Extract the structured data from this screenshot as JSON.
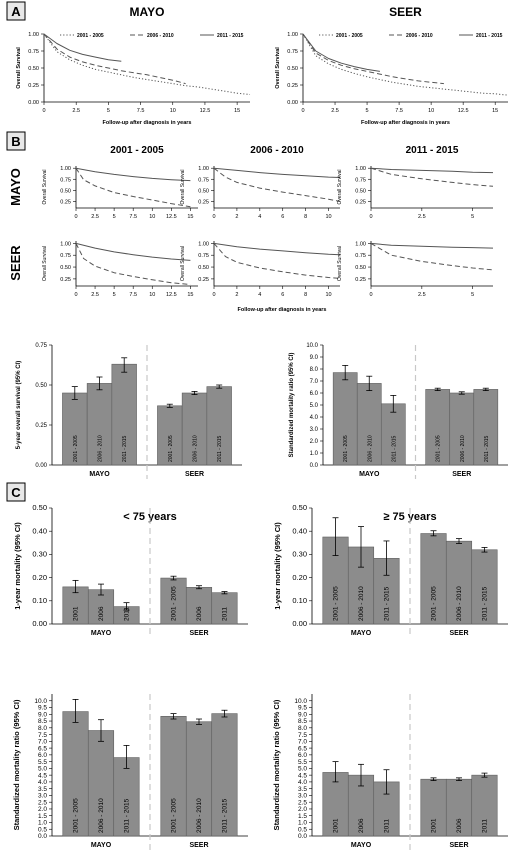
{
  "figure": {
    "panel_letters": [
      "A",
      "B",
      "C"
    ],
    "colors": {
      "bar_fill": "#8c8c8c",
      "bar_stroke": "#5e5e5e",
      "axis": "#000000",
      "divider": "#c8c8c8",
      "curve": "#555555",
      "panel_box_fill": "#e8e8e8"
    }
  },
  "panelA": {
    "charts": [
      {
        "title": "MAYO",
        "ylabel": "Overall Survival",
        "xlabel": "Follow-up after diagnosis in years",
        "xlim": [
          0,
          16
        ],
        "ylim": [
          0,
          1
        ],
        "xticks": [
          "0",
          "2.5",
          "5",
          "7.5",
          "10",
          "12.5",
          "15"
        ],
        "yticks": [
          "0.00",
          "0.25",
          "0.50",
          "0.75",
          "1.00"
        ],
        "legend": [
          "2001 - 2005",
          "2006 - 2010",
          "2011 - 2015"
        ]
      },
      {
        "title": "SEER",
        "ylabel": "Overall Survival",
        "xlabel": "Follow-up after diagnosis in years",
        "xlim": [
          0,
          16
        ],
        "ylim": [
          0,
          1
        ],
        "xticks": [
          "0",
          "2.5",
          "5",
          "7.5",
          "10",
          "12.5",
          "15"
        ],
        "yticks": [
          "0.00",
          "0.25",
          "0.50",
          "0.75",
          "1.00"
        ],
        "legend": [
          "2001 - 2005",
          "2006 - 2010",
          "2011 - 2015"
        ]
      }
    ]
  },
  "panelB": {
    "col_titles": [
      "2001 - 2005",
      "2006 - 2010",
      "2011 - 2015"
    ],
    "row_titles": [
      "MAYO",
      "SEER"
    ],
    "ylabel": "Overall Survival",
    "xlabel": "Follow-up after diagnosis in years",
    "yticks": [
      "0.25",
      "0.50",
      "0.75",
      "1.00"
    ],
    "xticks": [
      [
        "0",
        "2.5",
        "5",
        "7.5",
        "10",
        "12.5",
        "15"
      ],
      [
        "0",
        "2",
        "4",
        "6",
        "8",
        "10"
      ],
      [
        "0",
        "2.5",
        "5"
      ]
    ]
  },
  "chart_data": [
    {
      "type": "line",
      "panel": "A",
      "title": "MAYO",
      "xlabel": "Follow-up after diagnosis in years",
      "ylabel": "Overall Survival",
      "xlim": [
        0,
        16
      ],
      "ylim": [
        0,
        1
      ],
      "series": [
        {
          "name": "2001 - 2005",
          "x": [
            0,
            1,
            2,
            3,
            4,
            5,
            6,
            7,
            8,
            9,
            10,
            11,
            12,
            13,
            14,
            15,
            16
          ],
          "y": [
            1.0,
            0.74,
            0.62,
            0.54,
            0.48,
            0.44,
            0.4,
            0.36,
            0.33,
            0.3,
            0.27,
            0.24,
            0.22,
            0.19,
            0.16,
            0.13,
            0.11
          ]
        },
        {
          "name": "2006 - 2010",
          "x": [
            0,
            1,
            2,
            3,
            4,
            5,
            6,
            7,
            8,
            9,
            10,
            11
          ],
          "y": [
            1.0,
            0.78,
            0.66,
            0.59,
            0.54,
            0.5,
            0.46,
            0.43,
            0.4,
            0.36,
            0.32,
            0.27
          ]
        },
        {
          "name": "2011 - 2015",
          "x": [
            0,
            1,
            2,
            3,
            4,
            5,
            6
          ],
          "y": [
            1.0,
            0.86,
            0.76,
            0.7,
            0.66,
            0.62,
            0.6
          ]
        }
      ]
    },
    {
      "type": "line",
      "panel": "A",
      "title": "SEER",
      "xlabel": "Follow-up after diagnosis in years",
      "ylabel": "Overall Survival",
      "xlim": [
        0,
        16
      ],
      "ylim": [
        0,
        1
      ],
      "series": [
        {
          "name": "2001 - 2005",
          "x": [
            0,
            1,
            2,
            3,
            4,
            5,
            6,
            7,
            8,
            9,
            10,
            11,
            12,
            13,
            14,
            15,
            16
          ],
          "y": [
            1.0,
            0.68,
            0.56,
            0.48,
            0.42,
            0.37,
            0.33,
            0.29,
            0.26,
            0.23,
            0.21,
            0.19,
            0.17,
            0.15,
            0.13,
            0.12,
            0.1
          ]
        },
        {
          "name": "2006 - 2010",
          "x": [
            0,
            1,
            2,
            3,
            4,
            5,
            6,
            7,
            8,
            9,
            10,
            11
          ],
          "y": [
            1.0,
            0.72,
            0.61,
            0.54,
            0.49,
            0.45,
            0.41,
            0.37,
            0.34,
            0.31,
            0.29,
            0.27
          ]
        },
        {
          "name": "2011 - 2015",
          "x": [
            0,
            1,
            2,
            3,
            4,
            5,
            6
          ],
          "y": [
            1.0,
            0.75,
            0.64,
            0.57,
            0.52,
            0.48,
            0.45
          ]
        }
      ]
    },
    {
      "type": "line",
      "panel": "B",
      "row": "MAYO",
      "title": "2001 - 2005",
      "xlim": [
        0,
        16
      ],
      "ylim": [
        0.1,
        1.05
      ],
      "series": [
        {
          "name": "",
          "x": [
            0,
            2.5,
            5,
            7.5,
            10,
            12.5,
            15
          ],
          "y": [
            1.0,
            0.92,
            0.86,
            0.81,
            0.77,
            0.74,
            0.72
          ]
        },
        {
          "name": "",
          "x": [
            0,
            1,
            2.5,
            5,
            7.5,
            10,
            12.5,
            15
          ],
          "y": [
            1.0,
            0.74,
            0.6,
            0.45,
            0.36,
            0.28,
            0.2,
            0.13
          ]
        }
      ]
    },
    {
      "type": "line",
      "panel": "B",
      "row": "MAYO",
      "title": "2006 - 2010",
      "xlim": [
        0,
        11
      ],
      "ylim": [
        0.1,
        1.05
      ],
      "series": [
        {
          "name": "",
          "x": [
            0,
            2,
            4,
            6,
            8,
            10,
            11
          ],
          "y": [
            1.0,
            0.95,
            0.9,
            0.86,
            0.83,
            0.8,
            0.79
          ]
        },
        {
          "name": "",
          "x": [
            0,
            1,
            2,
            4,
            6,
            8,
            10,
            11
          ],
          "y": [
            1.0,
            0.8,
            0.68,
            0.55,
            0.46,
            0.38,
            0.3,
            0.25
          ]
        }
      ]
    },
    {
      "type": "line",
      "panel": "B",
      "row": "MAYO",
      "title": "2011 - 2015",
      "xlim": [
        0,
        6
      ],
      "ylim": [
        0.1,
        1.05
      ],
      "series": [
        {
          "name": "",
          "x": [
            0,
            1,
            2.5,
            4,
            5,
            6
          ],
          "y": [
            1.0,
            0.97,
            0.95,
            0.93,
            0.91,
            0.9
          ]
        },
        {
          "name": "",
          "x": [
            0,
            1,
            2.5,
            4,
            5,
            6
          ],
          "y": [
            1.0,
            0.86,
            0.76,
            0.68,
            0.63,
            0.59
          ]
        }
      ]
    },
    {
      "type": "line",
      "panel": "B",
      "row": "SEER",
      "title": "2001 - 2005",
      "xlim": [
        0,
        16
      ],
      "ylim": [
        0.1,
        1.05
      ],
      "series": [
        {
          "name": "",
          "x": [
            0,
            2.5,
            5,
            7.5,
            10,
            12.5,
            15
          ],
          "y": [
            1.0,
            0.9,
            0.82,
            0.76,
            0.71,
            0.67,
            0.64
          ]
        },
        {
          "name": "",
          "x": [
            0,
            1,
            2.5,
            5,
            7.5,
            10,
            12.5,
            15
          ],
          "y": [
            1.0,
            0.68,
            0.52,
            0.38,
            0.3,
            0.23,
            0.17,
            0.13
          ]
        }
      ]
    },
    {
      "type": "line",
      "panel": "B",
      "row": "SEER",
      "title": "2006 - 2010",
      "xlim": [
        0,
        11
      ],
      "ylim": [
        0.1,
        1.05
      ],
      "series": [
        {
          "name": "",
          "x": [
            0,
            2,
            4,
            6,
            8,
            10,
            11
          ],
          "y": [
            1.0,
            0.93,
            0.88,
            0.84,
            0.8,
            0.77,
            0.76
          ]
        },
        {
          "name": "",
          "x": [
            0,
            1,
            2,
            4,
            6,
            8,
            10,
            11
          ],
          "y": [
            1.0,
            0.72,
            0.6,
            0.48,
            0.4,
            0.33,
            0.28,
            0.26
          ]
        }
      ]
    },
    {
      "type": "line",
      "panel": "B",
      "row": "SEER",
      "title": "2011 - 2015",
      "xlim": [
        0,
        6
      ],
      "ylim": [
        0.1,
        1.05
      ],
      "series": [
        {
          "name": "",
          "x": [
            0,
            1,
            2.5,
            4,
            5,
            6
          ],
          "y": [
            1.0,
            0.96,
            0.94,
            0.92,
            0.91,
            0.9
          ]
        },
        {
          "name": "",
          "x": [
            0,
            1,
            2.5,
            4,
            5,
            6
          ],
          "y": [
            1.0,
            0.75,
            0.62,
            0.53,
            0.48,
            0.44
          ]
        }
      ]
    },
    {
      "type": "bar",
      "panel": "B",
      "title": "",
      "ylabel": "5-year overall survival (95% CI)",
      "ylim": [
        0,
        0.75
      ],
      "yticks": [
        "0.00",
        "0.25",
        "0.50",
        "0.75"
      ],
      "groups": [
        "MAYO",
        "SEER"
      ],
      "series": [
        {
          "name": "MAYO",
          "categories": [
            "2001 - 2005",
            "2006 - 2010",
            "2011 - 2015"
          ],
          "values": [
            0.45,
            0.51,
            0.63
          ],
          "lo": [
            0.41,
            0.47,
            0.58
          ],
          "hi": [
            0.49,
            0.55,
            0.67
          ]
        },
        {
          "name": "SEER",
          "categories": [
            "2001 - 2005",
            "2006 - 2010",
            "2011 - 2015"
          ],
          "values": [
            0.37,
            0.45,
            0.49
          ],
          "lo": [
            0.36,
            0.44,
            0.48
          ],
          "hi": [
            0.38,
            0.46,
            0.5
          ]
        }
      ]
    },
    {
      "type": "bar",
      "panel": "B",
      "title": "",
      "ylabel": "Standardized mortality ratio (95% CI)",
      "ylim": [
        0,
        10
      ],
      "yticks": [
        "0.0",
        "1.0",
        "2.0",
        "3.0",
        "4.0",
        "5.0",
        "6.0",
        "7.0",
        "8.0",
        "9.0",
        "10.0"
      ],
      "groups": [
        "MAYO",
        "SEER"
      ],
      "series": [
        {
          "name": "MAYO",
          "categories": [
            "2001 - 2005",
            "2006 - 2010",
            "2011 - 2015"
          ],
          "values": [
            7.7,
            6.8,
            5.1
          ],
          "lo": [
            7.1,
            6.2,
            4.4
          ],
          "hi": [
            8.3,
            7.4,
            5.8
          ]
        },
        {
          "name": "SEER",
          "categories": [
            "2001 - 2005",
            "2006 - 2010",
            "2011 - 2015"
          ],
          "values": [
            6.3,
            6.0,
            6.3
          ],
          "lo": [
            6.2,
            5.9,
            6.2
          ],
          "hi": [
            6.4,
            6.1,
            6.4
          ]
        }
      ]
    },
    {
      "type": "bar",
      "panel": "C",
      "title": "< 75 years",
      "ylabel": "1-year mortality (95% CI)",
      "ylim": [
        0,
        0.5
      ],
      "yticks": [
        "0.00",
        "0.10",
        "0.20",
        "0.30",
        "0.40",
        "0.50"
      ],
      "groups": [
        "MAYO",
        "SEER"
      ],
      "series": [
        {
          "name": "MAYO",
          "categories": [
            "2001",
            "2006",
            "2011"
          ],
          "values": [
            0.16,
            0.148,
            0.075
          ],
          "lo": [
            0.135,
            0.125,
            0.06
          ],
          "hi": [
            0.188,
            0.172,
            0.092
          ]
        },
        {
          "name": "SEER",
          "categories": [
            "2001 - 2005",
            "2006",
            "2011"
          ],
          "values": [
            0.198,
            0.158,
            0.135
          ],
          "lo": [
            0.19,
            0.152,
            0.13
          ],
          "hi": [
            0.206,
            0.165,
            0.14
          ]
        }
      ]
    },
    {
      "type": "bar",
      "panel": "C",
      "title": "≥ 75 years",
      "ylabel": "1-year mortality (95% CI)",
      "ylim": [
        0,
        0.5
      ],
      "yticks": [
        "0.00",
        "0.10",
        "0.20",
        "0.30",
        "0.40",
        "0.50"
      ],
      "groups": [
        "MAYO",
        "SEER"
      ],
      "series": [
        {
          "name": "MAYO",
          "categories": [
            "2001 - 2005",
            "2006 - 2010",
            "2011 - 2015"
          ],
          "values": [
            0.375,
            0.332,
            0.283
          ],
          "lo": [
            0.295,
            0.245,
            0.21
          ],
          "hi": [
            0.458,
            0.42,
            0.358
          ]
        },
        {
          "name": "SEER",
          "categories": [
            "2001 - 2005",
            "2006 - 2010",
            "2011 - 2015"
          ],
          "values": [
            0.39,
            0.357,
            0.32
          ],
          "lo": [
            0.38,
            0.347,
            0.31
          ],
          "hi": [
            0.402,
            0.368,
            0.33
          ]
        }
      ]
    },
    {
      "type": "bar",
      "panel": "C",
      "title": "",
      "ylabel": "Standardized mortality ratio (95% CI)",
      "ylim": [
        0,
        10.5
      ],
      "yticks": [
        "0.0",
        "0.5",
        "1.0",
        "1.5",
        "2.0",
        "2.5",
        "3.0",
        "3.5",
        "4.0",
        "4.5",
        "5.0",
        "5.5",
        "6.0",
        "6.5",
        "7.0",
        "7.5",
        "8.0",
        "8.5",
        "9.0",
        "9.5",
        "10.0"
      ],
      "groups": [
        "MAYO",
        "SEER"
      ],
      "series": [
        {
          "name": "MAYO",
          "categories": [
            "2001 - 2005",
            "2006 - 2010",
            "2011 - 2015"
          ],
          "values": [
            9.2,
            7.8,
            5.8
          ],
          "lo": [
            8.4,
            7.0,
            5.0
          ],
          "hi": [
            10.1,
            8.6,
            6.7
          ]
        },
        {
          "name": "SEER",
          "categories": [
            "2001 - 2005",
            "2006 - 2010",
            "2011 - 2015"
          ],
          "values": [
            8.85,
            8.45,
            9.05
          ],
          "lo": [
            8.65,
            8.25,
            8.8
          ],
          "hi": [
            9.05,
            8.65,
            9.3
          ]
        }
      ]
    },
    {
      "type": "bar",
      "panel": "C",
      "title": "",
      "ylabel": "Standardized mortality ratio (95% CI)",
      "ylim": [
        0,
        10.5
      ],
      "yticks": [
        "0.0",
        "0.5",
        "1.0",
        "1.5",
        "2.0",
        "2.5",
        "3.0",
        "3.5",
        "4.0",
        "4.5",
        "5.0",
        "5.5",
        "6.0",
        "6.5",
        "7.0",
        "7.5",
        "8.0",
        "8.5",
        "9.0",
        "9.5",
        "10.0"
      ],
      "groups": [
        "MAYO",
        "SEER"
      ],
      "series": [
        {
          "name": "MAYO",
          "categories": [
            "2001",
            "2006",
            "2011"
          ],
          "values": [
            4.7,
            4.5,
            4.0
          ],
          "lo": [
            4.0,
            3.7,
            3.1
          ],
          "hi": [
            5.5,
            5.3,
            4.9
          ]
        },
        {
          "name": "SEER",
          "categories": [
            "2001",
            "2006",
            "2011"
          ],
          "values": [
            4.2,
            4.2,
            4.5
          ],
          "lo": [
            4.1,
            4.1,
            4.35
          ],
          "hi": [
            4.3,
            4.3,
            4.65
          ]
        }
      ]
    }
  ]
}
